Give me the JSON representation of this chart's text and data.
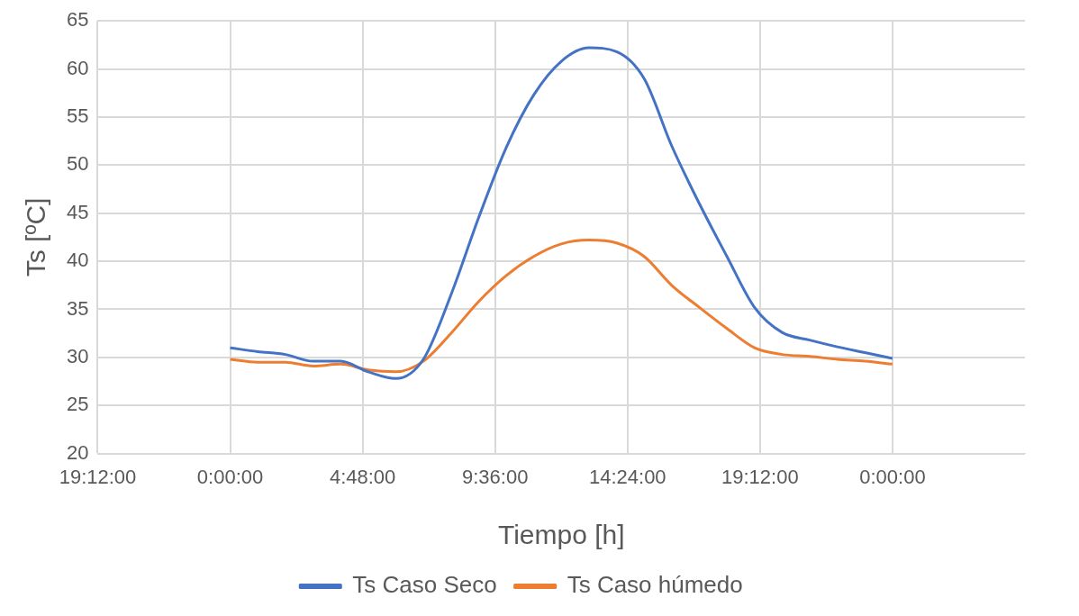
{
  "chart_data": {
    "type": "line",
    "xlabel": "Tiempo [h]",
    "ylabel": "Ts [ºC]",
    "xlim": [
      "2000-01-01T19:12",
      "2000-01-03T04:48"
    ],
    "xticks": [
      {
        "value": "2000-01-01T19:12",
        "label": "19:12:00"
      },
      {
        "value": "2000-01-02T00:00",
        "label": "0:00:00"
      },
      {
        "value": "2000-01-02T04:48",
        "label": "4:48:00"
      },
      {
        "value": "2000-01-02T09:36",
        "label": "9:36:00"
      },
      {
        "value": "2000-01-02T14:24",
        "label": "14:24:00"
      },
      {
        "value": "2000-01-02T19:12",
        "label": "19:12:00"
      },
      {
        "value": "2000-01-03T00:00",
        "label": "0:00:00"
      }
    ],
    "ylim": [
      20,
      65
    ],
    "yticks": [
      20,
      25,
      30,
      35,
      40,
      45,
      50,
      55,
      60,
      65
    ],
    "x": [
      "2000-01-02T00:00",
      "2000-01-02T01:00",
      "2000-01-02T02:00",
      "2000-01-02T03:00",
      "2000-01-02T04:00",
      "2000-01-02T05:00",
      "2000-01-02T06:00",
      "2000-01-02T07:00",
      "2000-01-02T08:00",
      "2000-01-02T09:00",
      "2000-01-02T10:00",
      "2000-01-02T11:00",
      "2000-01-02T12:00",
      "2000-01-02T13:00",
      "2000-01-02T14:00",
      "2000-01-02T15:00",
      "2000-01-02T16:00",
      "2000-01-02T17:00",
      "2000-01-02T18:00",
      "2000-01-02T19:00",
      "2000-01-02T20:00",
      "2000-01-02T21:00",
      "2000-01-02T22:00",
      "2000-01-02T23:00",
      "2000-01-03T00:00"
    ],
    "series": [
      {
        "name": "Ts Caso Seco",
        "color": "#4472c4",
        "values": [
          31.0,
          30.6,
          30.3,
          29.6,
          29.6,
          28.5,
          27.8,
          29.8,
          36.5,
          44.5,
          51.8,
          57.3,
          60.8,
          62.2,
          61.8,
          59.0,
          52.0,
          46.0,
          40.5,
          35.2,
          32.6,
          31.8,
          31.1,
          30.5,
          29.9
        ]
      },
      {
        "name": "Ts Caso húmedo",
        "color": "#ed7d31",
        "values": [
          29.8,
          29.5,
          29.5,
          29.1,
          29.3,
          28.7,
          28.5,
          29.6,
          32.5,
          35.8,
          38.5,
          40.5,
          41.8,
          42.2,
          41.9,
          40.5,
          37.5,
          35.2,
          33.0,
          31.0,
          30.3,
          30.1,
          29.8,
          29.6,
          29.3
        ]
      }
    ],
    "grid": true,
    "legend": "bottom",
    "marker": "none",
    "line_style": "solid"
  }
}
